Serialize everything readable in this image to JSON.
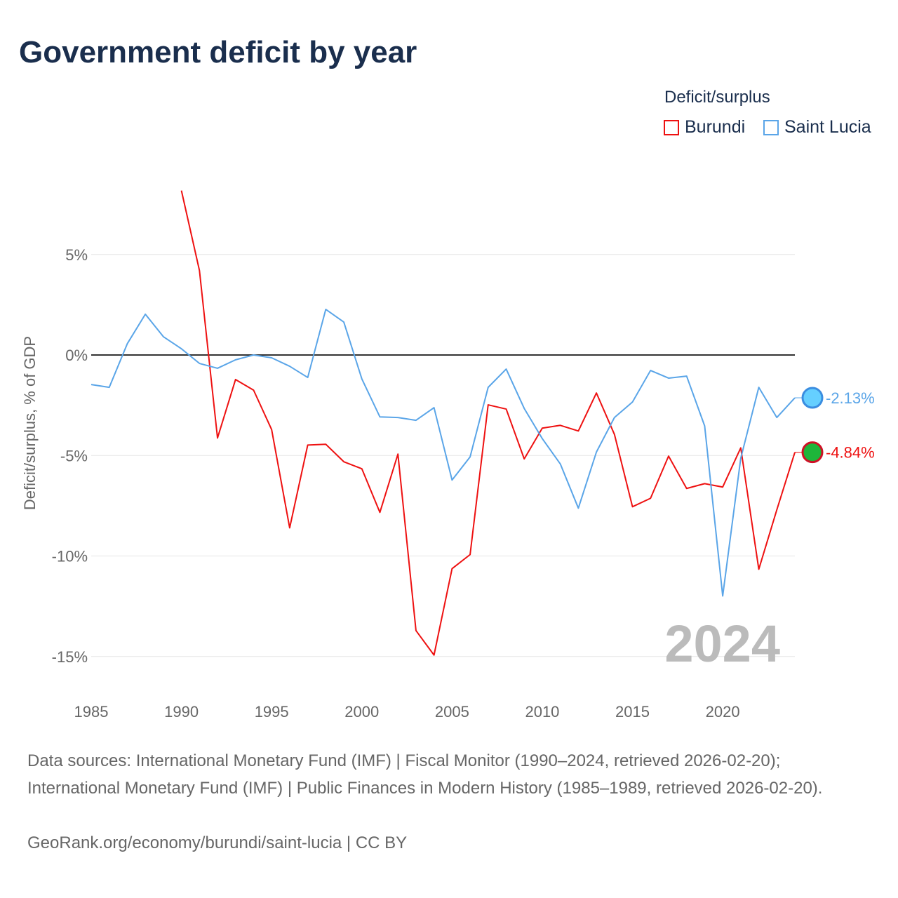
{
  "title": "Government deficit by year",
  "legend": {
    "title": "Deficit/surplus",
    "items": [
      "Burundi",
      "Saint Lucia"
    ]
  },
  "big_year": "2024",
  "footer": {
    "line1": "Data sources: International Monetary Fund (IMF) | Fiscal Monitor (1990–2024, retrieved 2026-02-20); International Monetary Fund (IMF) | Public Finances in Modern History (1985–1989, retrieved 2026-02-20).",
    "line2": "GeoRank.org/economy/burundi/saint-lucia | CC BY"
  },
  "chart_data": {
    "type": "line",
    "title": "Government deficit by year",
    "ylabel": "Deficit/surplus, % of GDP",
    "xlim": [
      1985,
      2024
    ],
    "ylim": [
      -16,
      9
    ],
    "yticks": [
      5,
      0,
      -5,
      -10,
      -15
    ],
    "ytick_labels": [
      "5%",
      "0%",
      "-5%",
      "-10%",
      "-15%"
    ],
    "xticks": [
      1985,
      1990,
      1995,
      2000,
      2005,
      2010,
      2015,
      2020
    ],
    "end_labels": [
      "-4.84%",
      "-2.13%"
    ],
    "series": [
      {
        "name": "Burundi",
        "color": "#ee1111",
        "start": 1990,
        "values": [
          8.18,
          4.2,
          -4.13,
          -1.22,
          -1.75,
          -3.71,
          -8.6,
          -4.48,
          -4.44,
          -5.31,
          -5.66,
          -7.83,
          -4.93,
          -13.71,
          -14.93,
          -10.63,
          -9.93,
          -2.48,
          -2.69,
          -5.17,
          -3.64,
          -3.5,
          -3.78,
          -1.89,
          -3.95,
          -7.55,
          -7.13,
          -5.03,
          -6.64,
          -6.4,
          -6.57,
          -4.62,
          -10.66,
          -7.7,
          -4.84
        ]
      },
      {
        "name": "Saint Lucia",
        "color": "#5aa5e8",
        "start": 1985,
        "values": [
          -1.47,
          -1.61,
          0.56,
          2.03,
          0.91,
          0.31,
          -0.42,
          -0.66,
          -0.24,
          0,
          -0.14,
          -0.56,
          -1.12,
          2.27,
          1.64,
          -1.19,
          -3.08,
          -3.11,
          -3.25,
          -2.62,
          -6.22,
          -5.07,
          -1.61,
          -0.7,
          -2.66,
          -4.16,
          -5.42,
          -7.62,
          -4.83,
          -3.11,
          -2.34,
          -0.77,
          -1.15,
          -1.05,
          -3.53,
          -11.99,
          -5.14,
          -1.61,
          -3.11,
          -2.13
        ]
      }
    ]
  }
}
